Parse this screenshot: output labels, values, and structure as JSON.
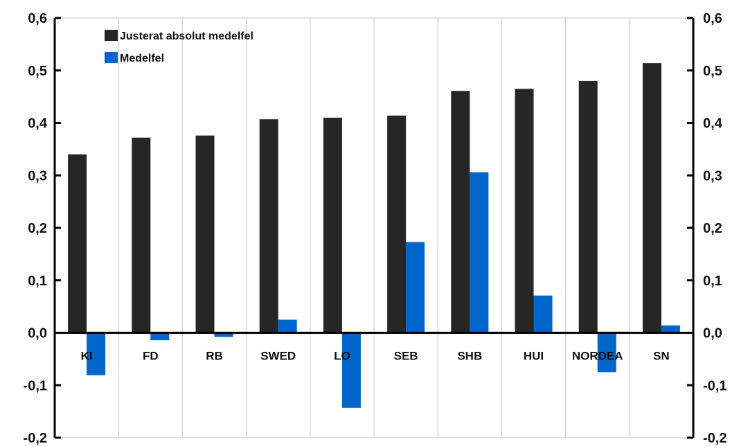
{
  "chart_data": {
    "type": "bar",
    "categories": [
      "KI",
      "FD",
      "RB",
      "SWED",
      "LO",
      "SEB",
      "SHB",
      "HUI",
      "NORDEA",
      "SN"
    ],
    "series": [
      {
        "name": "Justerat absolut medelfel",
        "color": "#262626",
        "values": [
          0.34,
          0.372,
          0.376,
          0.407,
          0.41,
          0.414,
          0.461,
          0.465,
          0.48,
          0.514
        ]
      },
      {
        "name": "Medelfel",
        "color": "#0066cc",
        "values": [
          -0.081,
          -0.014,
          -0.008,
          0.025,
          -0.143,
          0.173,
          0.306,
          0.071,
          -0.075,
          0.014
        ]
      }
    ],
    "ylim": [
      -0.2,
      0.6
    ],
    "yticks": [
      0.6,
      0.5,
      0.4,
      0.3,
      0.2,
      0.1,
      0.0,
      -0.1,
      -0.2
    ],
    "ytick_labels": [
      "0,6",
      "0,5",
      "0,4",
      "0,3",
      "0,2",
      "0,1",
      "0,0",
      "-0,1",
      "-0,2"
    ],
    "dual_y_axis": true,
    "grid": "vertical",
    "legend": "top-left",
    "title": "",
    "xlabel": "",
    "ylabel": ""
  }
}
